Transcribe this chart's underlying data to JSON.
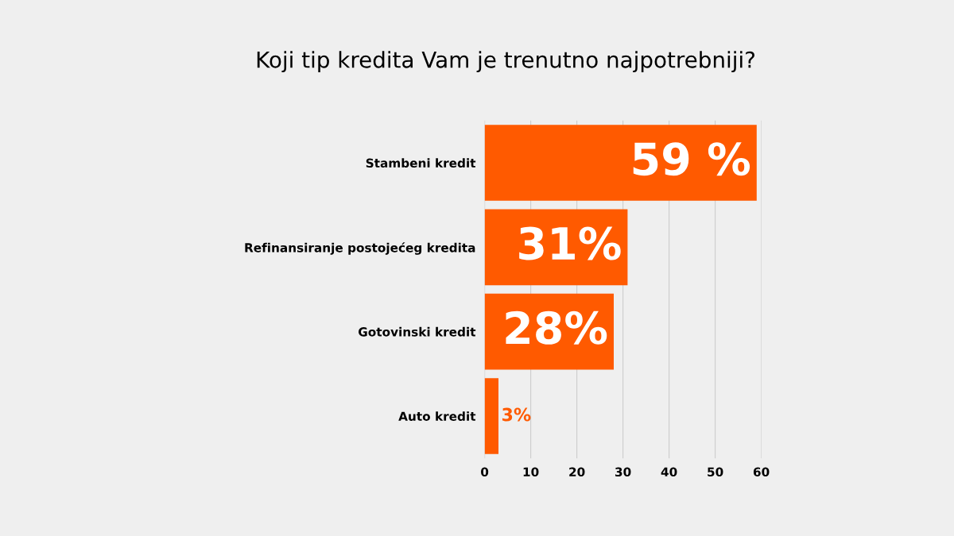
{
  "chart_data": {
    "type": "bar",
    "orientation": "horizontal",
    "title": "Koji tip kredita Vam je trenutno najpotrebniji?",
    "categories": [
      "Stambeni kredit",
      "Refinansiranje postojećeg kredita",
      "Gotovinski kredit",
      "Auto kredit"
    ],
    "values": [
      59,
      31,
      28,
      3
    ],
    "value_labels": [
      "59 %",
      "31%",
      "28%",
      "3%"
    ],
    "color": "#ff5a00",
    "xlim": [
      0,
      60
    ],
    "xticks": [
      0,
      10,
      20,
      30,
      40,
      50,
      60
    ],
    "grid": "x"
  }
}
